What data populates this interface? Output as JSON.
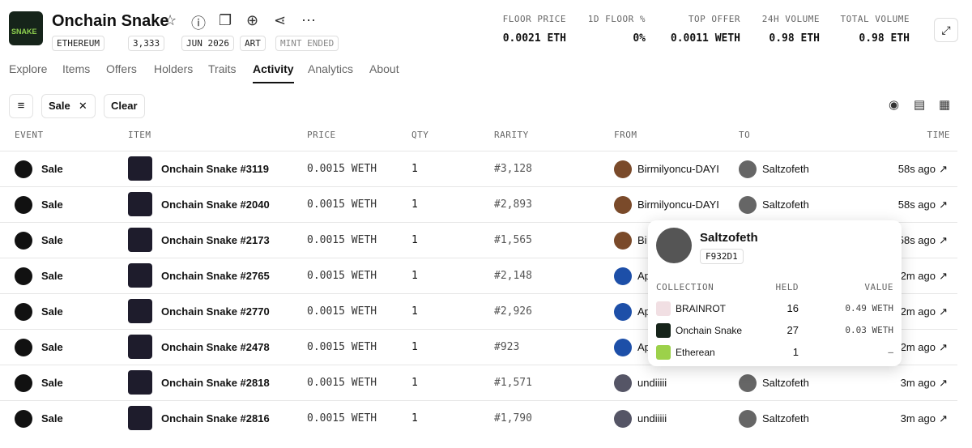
{
  "header": {
    "name": "Onchain Snake",
    "logo_text": "SNAKE",
    "tags": [
      "ETHEREUM",
      "3,333",
      "JUN 2026",
      "ART",
      "MINT ENDED"
    ],
    "stats": [
      {
        "label": "FLOOR PRICE",
        "value": "0.0021 ETH"
      },
      {
        "label": "1D FLOOR %",
        "value": "0%"
      },
      {
        "label": "TOP OFFER",
        "value": "0.0011 WETH"
      },
      {
        "label": "24H VOLUME",
        "value": "0.98 ETH"
      },
      {
        "label": "TOTAL VOLUME",
        "value": "0.98 ETH"
      }
    ]
  },
  "tabs": [
    "Explore",
    "Items",
    "Offers",
    "Holders",
    "Traits",
    "Activity",
    "Analytics",
    "About"
  ],
  "active_tab": 5,
  "filters": {
    "chip": "Sale",
    "clear": "Clear"
  },
  "table": {
    "columns": [
      "EVENT",
      "ITEM",
      "PRICE",
      "QTY",
      "RARITY",
      "FROM",
      "TO",
      "TIME"
    ],
    "rows": [
      [
        "Sale",
        "Onchain Snake #3119",
        "0.0015 WETH",
        "1",
        "#3,128",
        "Birmilyoncu-DAYI",
        "Saltzofeth",
        "58s ago"
      ],
      [
        "Sale",
        "Onchain Snake #2040",
        "0.0015 WETH",
        "1",
        "#2,893",
        "Birmilyoncu-DAYI",
        "Saltzofeth",
        "58s ago"
      ],
      [
        "Sale",
        "Onchain Snake #2173",
        "0.0015 WETH",
        "1",
        "#1,565",
        "Bi",
        null,
        "58s ago"
      ],
      [
        "Sale",
        "Onchain Snake #2765",
        "0.0015 WETH",
        "1",
        "#2,148",
        "Ap",
        null,
        "2m ago"
      ],
      [
        "Sale",
        "Onchain Snake #2770",
        "0.0015 WETH",
        "1",
        "#2,926",
        "Ap",
        null,
        "2m ago"
      ],
      [
        "Sale",
        "Onchain Snake #2478",
        "0.0015 WETH",
        "1",
        "#923",
        "Ap",
        null,
        "2m ago"
      ],
      [
        "Sale",
        "Onchain Snake #2818",
        "0.0015 WETH",
        "1",
        "#1,571",
        "undiiiii",
        "Saltzofeth",
        "3m ago"
      ],
      [
        "Sale",
        "Onchain Snake #2816",
        "0.0015 WETH",
        "1",
        "#1,790",
        "undiiiii",
        "Saltzofeth",
        "3m ago"
      ]
    ]
  },
  "popup": {
    "name": "Saltzofeth",
    "id": "F932D1",
    "columns": [
      "COLLECTION",
      "HELD",
      "VALUE"
    ],
    "rows": [
      [
        "BRAINROT",
        "16",
        "0.49 WETH"
      ],
      [
        "Onchain Snake",
        "27",
        "0.03 WETH"
      ],
      [
        "Etherean",
        "1",
        "–"
      ]
    ]
  }
}
